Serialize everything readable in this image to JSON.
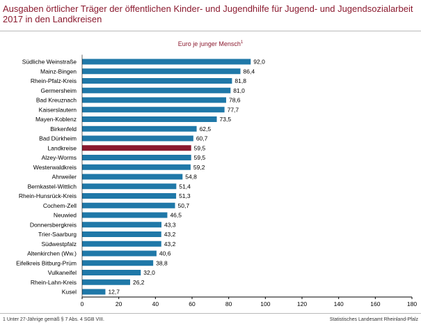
{
  "title": "Ausgaben örtlicher Träger der öffentlichen Kinder- und Jugendhilfe für Jugend- und Jugendsozialarbeit 2017 in den Landkreisen",
  "footnote": "1 Unter 27-Jährige gemäß § 7 Abs. 4 SGB VIII.",
  "source": "Statistisches Landesamt Rheinland-Pfalz",
  "colors": {
    "bar": "#1f78a8",
    "highlight": "#8b1a2f",
    "title": "#8b1a2f"
  },
  "chart_data": {
    "type": "bar",
    "orientation": "horizontal",
    "subtitle": "Euro je junger Mensch",
    "subtitle_footnote_marker": "1",
    "highlight_category": "Landkreise",
    "categories": [
      "Südliche Weinstraße",
      "Mainz-Bingen",
      "Rhein-Pfalz-Kreis",
      "Germersheim",
      "Bad Kreuznach",
      "Kaiserslautern",
      "Mayen-Koblenz",
      "Birkenfeld",
      "Bad Dürkheim",
      "Landkreise",
      "Alzey-Worms",
      "Westerwaldkreis",
      "Ahrweiler",
      "Bernkastel-Wittlich",
      "Rhein-Hunsrück-Kreis",
      "Cochem-Zell",
      "Neuwied",
      "Donnersbergkreis",
      "Trier-Saarburg",
      "Südwestpfalz",
      "Altenkirchen (Ww.)",
      "Eifelkreis Bitburg-Prüm",
      "Vulkaneifel",
      "Rhein-Lahn-Kreis",
      "Kusel"
    ],
    "values": [
      92.0,
      86.4,
      81.8,
      81.0,
      78.6,
      77.7,
      73.5,
      62.5,
      60.7,
      59.5,
      59.5,
      59.2,
      54.8,
      51.4,
      51.3,
      50.7,
      46.5,
      43.3,
      43.2,
      43.2,
      40.6,
      38.8,
      32.0,
      26.2,
      12.7
    ],
    "value_labels": [
      "92,0",
      "86,4",
      "81,8",
      "81,0",
      "78,6",
      "77,7",
      "73,5",
      "62,5",
      "60,7",
      "59,5",
      "59,5",
      "59,2",
      "54,8",
      "51,4",
      "51,3",
      "50,7",
      "46,5",
      "43,3",
      "43,2",
      "43,2",
      "40,6",
      "38,8",
      "32,0",
      "26,2",
      "12,7"
    ],
    "xlim": [
      0,
      180
    ],
    "xticks": [
      0,
      20,
      40,
      60,
      80,
      100,
      120,
      140,
      160,
      180
    ],
    "grid": false,
    "legend": "none"
  }
}
